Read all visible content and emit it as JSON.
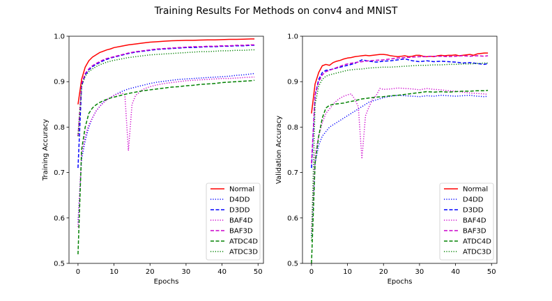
{
  "figure": {
    "title": "Training Results For Methods on conv4 and MNIST"
  },
  "chart_data": [
    {
      "type": "line",
      "xlabel": "Epochs",
      "ylabel": "Training Accuracy",
      "xlim": [
        -2.5,
        51.5
      ],
      "ylim": [
        0.5,
        1.0
      ],
      "xticks": [
        "0",
        "10",
        "20",
        "30",
        "40",
        "50"
      ],
      "yticks": [
        "0.5",
        "0.6",
        "0.7",
        "0.8",
        "0.9",
        "1.0"
      ],
      "grid": false,
      "legend_position": "lower-right",
      "series": [
        {
          "name": "Normal",
          "color": "#ff0000",
          "dash": "solid",
          "x": [
            0,
            1,
            2,
            3,
            4,
            5,
            6,
            7,
            8,
            9,
            10,
            12,
            14,
            16,
            18,
            20,
            22,
            24,
            26,
            28,
            30,
            32,
            34,
            36,
            38,
            40,
            42,
            44,
            46,
            48,
            49
          ],
          "values": [
            0.85,
            0.905,
            0.932,
            0.946,
            0.954,
            0.959,
            0.964,
            0.967,
            0.97,
            0.972,
            0.975,
            0.978,
            0.981,
            0.983,
            0.985,
            0.987,
            0.988,
            0.989,
            0.99,
            0.9905,
            0.991,
            0.991,
            0.9915,
            0.992,
            0.992,
            0.9925,
            0.993,
            0.993,
            0.9935,
            0.994,
            0.994
          ]
        },
        {
          "name": "D4DD",
          "color": "#0000ff",
          "dash": "dotted",
          "x": [
            0,
            1,
            2,
            3,
            4,
            5,
            6,
            7,
            8,
            9,
            10,
            12,
            14,
            16,
            18,
            20,
            22,
            24,
            26,
            28,
            30,
            32,
            34,
            36,
            38,
            40,
            42,
            44,
            46,
            48,
            49
          ],
          "values": [
            0.59,
            0.73,
            0.77,
            0.8,
            0.82,
            0.835,
            0.845,
            0.855,
            0.86,
            0.865,
            0.87,
            0.878,
            0.884,
            0.888,
            0.892,
            0.896,
            0.899,
            0.901,
            0.903,
            0.905,
            0.906,
            0.907,
            0.908,
            0.909,
            0.91,
            0.911,
            0.912,
            0.914,
            0.915,
            0.917,
            0.918
          ]
        },
        {
          "name": "D3DD",
          "color": "#0000ff",
          "dash": "dashed",
          "x": [
            0,
            1,
            2,
            3,
            4,
            5,
            6,
            7,
            8,
            9,
            10,
            12,
            14,
            16,
            18,
            20,
            22,
            24,
            26,
            28,
            30,
            32,
            34,
            36,
            38,
            40,
            42,
            44,
            46,
            48,
            49
          ],
          "values": [
            0.71,
            0.89,
            0.915,
            0.926,
            0.933,
            0.938,
            0.942,
            0.946,
            0.949,
            0.952,
            0.954,
            0.958,
            0.962,
            0.965,
            0.967,
            0.969,
            0.971,
            0.972,
            0.973,
            0.974,
            0.975,
            0.975,
            0.976,
            0.977,
            0.977,
            0.978,
            0.978,
            0.979,
            0.979,
            0.98,
            0.98
          ]
        },
        {
          "name": "BAF4D",
          "color": "#cc00cc",
          "dash": "dotted",
          "x": [
            0,
            1,
            2,
            3,
            4,
            5,
            6,
            7,
            8,
            9,
            10,
            11,
            12,
            13,
            14,
            15,
            16,
            17,
            18,
            20,
            22,
            24,
            26,
            28,
            30,
            32,
            34,
            36,
            38,
            40,
            42,
            44,
            46,
            48,
            49
          ],
          "values": [
            0.58,
            0.74,
            0.78,
            0.805,
            0.82,
            0.835,
            0.845,
            0.853,
            0.86,
            0.865,
            0.87,
            0.873,
            0.875,
            0.872,
            0.748,
            0.85,
            0.87,
            0.876,
            0.883,
            0.889,
            0.893,
            0.896,
            0.898,
            0.9,
            0.902,
            0.903,
            0.904,
            0.905,
            0.906,
            0.907,
            0.907,
            0.908,
            0.909,
            0.91,
            0.91
          ]
        },
        {
          "name": "BAF3D",
          "color": "#cc00cc",
          "dash": "dashed",
          "x": [
            0,
            1,
            2,
            3,
            4,
            5,
            6,
            7,
            8,
            9,
            10,
            12,
            14,
            16,
            18,
            20,
            22,
            24,
            26,
            28,
            30,
            32,
            34,
            36,
            38,
            40,
            42,
            44,
            46,
            48,
            49
          ],
          "values": [
            0.78,
            0.895,
            0.918,
            0.928,
            0.935,
            0.94,
            0.944,
            0.948,
            0.951,
            0.953,
            0.955,
            0.959,
            0.963,
            0.966,
            0.968,
            0.97,
            0.972,
            0.973,
            0.974,
            0.975,
            0.976,
            0.977,
            0.977,
            0.978,
            0.978,
            0.979,
            0.979,
            0.98,
            0.98,
            0.981,
            0.981
          ]
        },
        {
          "name": "ATDC4D",
          "color": "#008000",
          "dash": "dashed",
          "x": [
            0,
            1,
            2,
            3,
            4,
            5,
            6,
            7,
            8,
            9,
            10,
            12,
            14,
            16,
            18,
            20,
            22,
            24,
            26,
            28,
            30,
            32,
            34,
            36,
            38,
            40,
            42,
            44,
            46,
            48,
            49
          ],
          "values": [
            0.52,
            0.75,
            0.8,
            0.83,
            0.842,
            0.849,
            0.854,
            0.858,
            0.861,
            0.864,
            0.866,
            0.87,
            0.874,
            0.877,
            0.88,
            0.882,
            0.884,
            0.886,
            0.888,
            0.889,
            0.891,
            0.892,
            0.894,
            0.895,
            0.896,
            0.898,
            0.899,
            0.9,
            0.901,
            0.902,
            0.903
          ]
        },
        {
          "name": "ATDC3D",
          "color": "#008000",
          "dash": "dotted",
          "x": [
            0,
            1,
            2,
            3,
            4,
            5,
            6,
            7,
            8,
            9,
            10,
            12,
            14,
            16,
            18,
            20,
            22,
            24,
            26,
            28,
            30,
            32,
            34,
            36,
            38,
            40,
            42,
            44,
            46,
            48,
            49
          ],
          "values": [
            0.78,
            0.89,
            0.912,
            0.922,
            0.928,
            0.933,
            0.937,
            0.94,
            0.943,
            0.945,
            0.947,
            0.95,
            0.953,
            0.955,
            0.957,
            0.959,
            0.96,
            0.961,
            0.962,
            0.963,
            0.964,
            0.965,
            0.966,
            0.966,
            0.967,
            0.968,
            0.968,
            0.969,
            0.969,
            0.97,
            0.97
          ]
        }
      ]
    },
    {
      "type": "line",
      "xlabel": "Epochs",
      "ylabel": "Validation  Accuracy",
      "xlim": [
        -2.5,
        51.5
      ],
      "ylim": [
        0.5,
        1.0
      ],
      "xticks": [
        "0",
        "10",
        "20",
        "30",
        "40",
        "50"
      ],
      "yticks": [
        "0.5",
        "0.6",
        "0.7",
        "0.8",
        "0.9",
        "1.0"
      ],
      "grid": false,
      "legend_position": "lower-right",
      "series": [
        {
          "name": "Normal",
          "color": "#ff0000",
          "dash": "solid",
          "x": [
            0,
            1,
            2,
            3,
            4,
            5,
            6,
            7,
            8,
            9,
            10,
            11,
            12,
            13,
            14,
            15,
            16,
            17,
            18,
            19,
            20,
            21,
            22,
            23,
            24,
            25,
            26,
            27,
            28,
            29,
            30,
            31,
            32,
            33,
            34,
            35,
            36,
            37,
            38,
            39,
            40,
            41,
            42,
            43,
            44,
            45,
            46,
            47,
            48,
            49
          ],
          "values": [
            0.83,
            0.895,
            0.92,
            0.935,
            0.938,
            0.936,
            0.942,
            0.945,
            0.947,
            0.95,
            0.952,
            0.953,
            0.955,
            0.956,
            0.957,
            0.958,
            0.957,
            0.958,
            0.959,
            0.96,
            0.96,
            0.959,
            0.957,
            0.956,
            0.955,
            0.956,
            0.957,
            0.955,
            0.956,
            0.958,
            0.958,
            0.956,
            0.955,
            0.956,
            0.955,
            0.957,
            0.958,
            0.957,
            0.958,
            0.958,
            0.959,
            0.957,
            0.958,
            0.959,
            0.96,
            0.958,
            0.961,
            0.962,
            0.963,
            0.963
          ]
        },
        {
          "name": "D4DD",
          "color": "#0000ff",
          "dash": "dotted",
          "x": [
            0,
            1,
            2,
            3,
            4,
            5,
            6,
            7,
            8,
            9,
            10,
            12,
            14,
            16,
            18,
            20,
            22,
            24,
            26,
            28,
            30,
            32,
            34,
            36,
            38,
            40,
            42,
            44,
            46,
            48,
            49
          ],
          "values": [
            0.56,
            0.72,
            0.76,
            0.78,
            0.79,
            0.8,
            0.805,
            0.81,
            0.815,
            0.82,
            0.825,
            0.835,
            0.845,
            0.855,
            0.86,
            0.865,
            0.868,
            0.87,
            0.869,
            0.868,
            0.867,
            0.869,
            0.868,
            0.87,
            0.869,
            0.868,
            0.869,
            0.87,
            0.868,
            0.867,
            0.868
          ]
        },
        {
          "name": "D3DD",
          "color": "#0000ff",
          "dash": "dashed",
          "x": [
            0,
            1,
            2,
            3,
            4,
            5,
            6,
            7,
            8,
            9,
            10,
            12,
            14,
            16,
            18,
            20,
            22,
            24,
            26,
            28,
            30,
            32,
            34,
            36,
            38,
            40,
            42,
            44,
            46,
            48,
            49
          ],
          "values": [
            0.71,
            0.87,
            0.905,
            0.92,
            0.925,
            0.926,
            0.928,
            0.93,
            0.932,
            0.934,
            0.936,
            0.94,
            0.948,
            0.945,
            0.943,
            0.945,
            0.946,
            0.948,
            0.95,
            0.946,
            0.944,
            0.946,
            0.944,
            0.945,
            0.944,
            0.943,
            0.941,
            0.942,
            0.94,
            0.938,
            0.94
          ]
        },
        {
          "name": "BAF4D",
          "color": "#cc00cc",
          "dash": "dotted",
          "x": [
            0,
            1,
            2,
            3,
            4,
            5,
            6,
            7,
            8,
            9,
            10,
            11,
            12,
            13,
            14,
            15,
            16,
            17,
            18,
            19,
            20,
            22,
            24,
            26,
            28,
            30,
            32,
            34,
            36,
            38,
            40,
            42,
            44,
            46,
            48,
            49
          ],
          "values": [
            0.57,
            0.74,
            0.78,
            0.81,
            0.83,
            0.84,
            0.85,
            0.858,
            0.864,
            0.868,
            0.871,
            0.873,
            0.862,
            0.845,
            0.73,
            0.825,
            0.845,
            0.862,
            0.87,
            0.885,
            0.883,
            0.884,
            0.886,
            0.885,
            0.884,
            0.882,
            0.885,
            0.883,
            0.882,
            0.88,
            0.879,
            0.877,
            0.875,
            0.874,
            0.873,
            0.872
          ]
        },
        {
          "name": "BAF3D",
          "color": "#cc00cc",
          "dash": "dashed",
          "x": [
            0,
            1,
            2,
            3,
            4,
            5,
            6,
            7,
            8,
            9,
            10,
            12,
            14,
            16,
            18,
            20,
            22,
            24,
            26,
            28,
            30,
            32,
            34,
            36,
            38,
            40,
            42,
            44,
            46,
            48,
            49
          ],
          "values": [
            0.72,
            0.87,
            0.9,
            0.915,
            0.922,
            0.925,
            0.928,
            0.931,
            0.934,
            0.937,
            0.939,
            0.942,
            0.944,
            0.946,
            0.947,
            0.948,
            0.95,
            0.952,
            0.953,
            0.954,
            0.955,
            0.955,
            0.956,
            0.956,
            0.955,
            0.956,
            0.957,
            0.956,
            0.957,
            0.956,
            0.957
          ]
        },
        {
          "name": "ATDC4D",
          "color": "#008000",
          "dash": "dashed",
          "x": [
            0,
            1,
            2,
            3,
            4,
            5,
            6,
            7,
            8,
            9,
            10,
            12,
            14,
            16,
            18,
            20,
            22,
            24,
            26,
            28,
            30,
            32,
            34,
            36,
            38,
            40,
            42,
            44,
            46,
            48,
            49
          ],
          "values": [
            0.5,
            0.72,
            0.78,
            0.82,
            0.842,
            0.848,
            0.85,
            0.851,
            0.852,
            0.853,
            0.855,
            0.858,
            0.862,
            0.864,
            0.866,
            0.867,
            0.869,
            0.87,
            0.872,
            0.874,
            0.876,
            0.878,
            0.877,
            0.878,
            0.877,
            0.878,
            0.879,
            0.879,
            0.88,
            0.88,
            0.881
          ]
        },
        {
          "name": "ATDC3D",
          "color": "#008000",
          "dash": "dotted",
          "x": [
            0,
            1,
            2,
            3,
            4,
            5,
            6,
            7,
            8,
            9,
            10,
            12,
            14,
            16,
            18,
            20,
            22,
            24,
            26,
            28,
            30,
            32,
            34,
            36,
            38,
            40,
            42,
            44,
            46,
            48,
            49
          ],
          "values": [
            0.55,
            0.85,
            0.89,
            0.905,
            0.912,
            0.915,
            0.917,
            0.919,
            0.921,
            0.923,
            0.925,
            0.927,
            0.928,
            0.93,
            0.931,
            0.932,
            0.932,
            0.933,
            0.934,
            0.935,
            0.936,
            0.936,
            0.937,
            0.937,
            0.938,
            0.938,
            0.939,
            0.939,
            0.94,
            0.941,
            0.941
          ]
        }
      ]
    }
  ]
}
